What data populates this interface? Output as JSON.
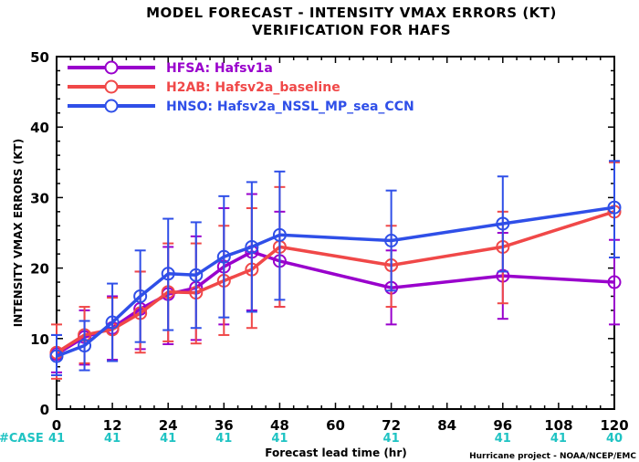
{
  "chart_data": {
    "type": "line",
    "title": "MODEL FORECAST - INTENSITY VMAX ERRORS (KT)",
    "subtitle": "VERIFICATION FOR HAFS",
    "xlabel": "Forecast lead time (hr)",
    "ylabel": "INTENSITY VMAX ERRORS (KT)",
    "xlim": [
      0,
      120
    ],
    "ylim": [
      0,
      50
    ],
    "xticks": [
      0,
      12,
      24,
      36,
      48,
      60,
      72,
      84,
      96,
      108,
      120
    ],
    "yticks": [
      0,
      10,
      20,
      30,
      40,
      50
    ],
    "grid": false,
    "legend_position": "top-left",
    "case_label": "#CASE",
    "cases": [
      {
        "x": 0,
        "n": "41"
      },
      {
        "x": 12,
        "n": "41"
      },
      {
        "x": 24,
        "n": "41"
      },
      {
        "x": 36,
        "n": "41"
      },
      {
        "x": 48,
        "n": "41"
      },
      {
        "x": 72,
        "n": "41"
      },
      {
        "x": 96,
        "n": "41"
      },
      {
        "x": 108,
        "n": "41"
      },
      {
        "x": 120,
        "n": "40"
      }
    ],
    "credit": "Hurricane project - NOAA/NCEP/EMC",
    "series": [
      {
        "name": "HFSA: Hafsv1a",
        "color": "#9900cc",
        "x": [
          0,
          6,
          12,
          18,
          24,
          30,
          36,
          42,
          48,
          72,
          96,
          120
        ],
        "y": [
          7.8,
          10.2,
          11.5,
          14.2,
          16.3,
          17.2,
          20.2,
          22.3,
          21.0,
          17.2,
          18.9,
          18.0
        ],
        "err_low": [
          5.2,
          6.3,
          7.0,
          8.5,
          9.2,
          9.8,
          12.0,
          14.0,
          14.5,
          12.0,
          12.8,
          12.0
        ],
        "err_high": [
          10.5,
          14.0,
          16.0,
          19.5,
          23.0,
          24.5,
          28.5,
          30.5,
          28.0,
          22.5,
          25.0,
          24.0
        ]
      },
      {
        "name": "H2AB: Hafsv2a_baseline",
        "color": "#f04848",
        "x": [
          0,
          6,
          12,
          18,
          24,
          30,
          36,
          42,
          48,
          72,
          96,
          120
        ],
        "y": [
          8.0,
          10.5,
          11.3,
          13.6,
          16.6,
          16.5,
          18.2,
          19.8,
          23.0,
          20.4,
          23.0,
          28.0
        ],
        "err_low": [
          4.3,
          6.5,
          6.8,
          8.0,
          9.6,
          9.3,
          10.5,
          11.5,
          14.5,
          14.5,
          15.0,
          21.5
        ],
        "err_high": [
          12.0,
          14.5,
          15.8,
          19.5,
          23.5,
          23.5,
          26.0,
          28.5,
          31.5,
          26.0,
          28.0,
          35.0
        ]
      },
      {
        "name": "HNSO: Hafsv2a_NSSL_MP_sea_CCN",
        "color": "#2f4fe8",
        "x": [
          0,
          6,
          12,
          18,
          24,
          30,
          36,
          42,
          48,
          72,
          96,
          120
        ],
        "y": [
          7.5,
          9.0,
          12.3,
          16.0,
          19.2,
          19.0,
          21.6,
          23.0,
          24.7,
          23.9,
          26.3,
          28.6
        ],
        "err_low": [
          4.8,
          5.5,
          6.8,
          9.5,
          11.2,
          11.5,
          13.0,
          13.8,
          15.5,
          16.8,
          19.5,
          21.5
        ],
        "err_high": [
          10.5,
          12.5,
          17.8,
          22.5,
          27.0,
          26.5,
          30.2,
          32.2,
          33.7,
          31.0,
          33.0,
          35.2
        ]
      }
    ]
  }
}
